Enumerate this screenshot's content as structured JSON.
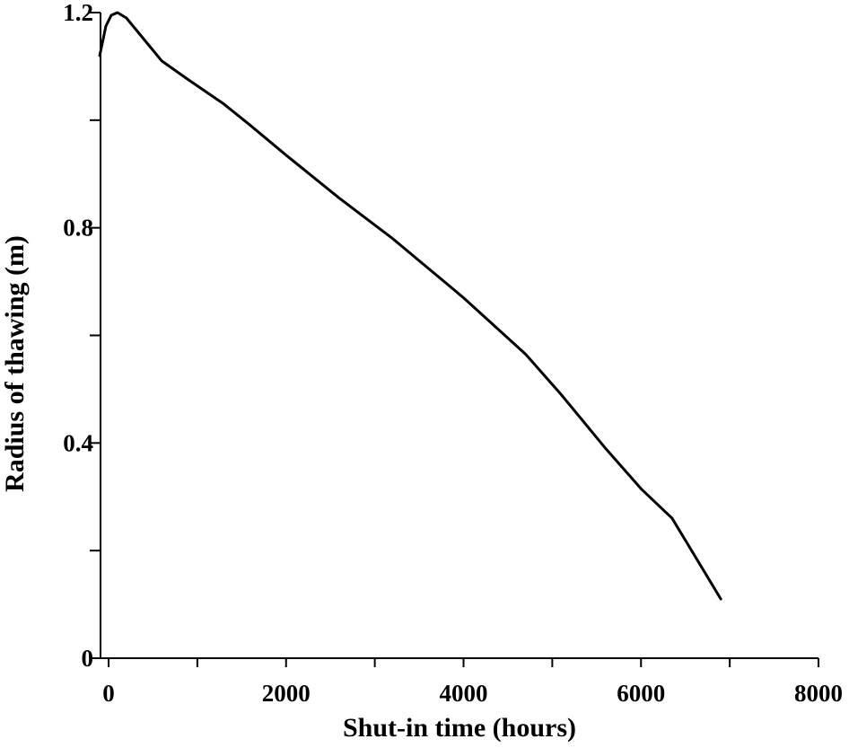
{
  "chart_data": {
    "type": "line",
    "title": "",
    "xlabel": "Shut-in time (hours)",
    "ylabel": "Radius of thawing (m)",
    "xlim": [
      -100,
      8000
    ],
    "ylim": [
      0,
      1.2
    ],
    "x_ticks": [
      0,
      1000,
      2000,
      3000,
      4000,
      5000,
      6000,
      7000,
      8000
    ],
    "x_tick_labels": [
      "0",
      "",
      "2000",
      "",
      "4000",
      "",
      "6000",
      "",
      "8000"
    ],
    "y_ticks": [
      0,
      0.2,
      0.4,
      0.6,
      0.8,
      1.0,
      1.2
    ],
    "y_tick_labels": [
      "0",
      "",
      "0.4",
      "",
      "0.8",
      "",
      "1.2"
    ],
    "grid": false,
    "series": [
      {
        "points": [
          [
            -100,
            1.12
          ],
          [
            -30,
            1.175
          ],
          [
            30,
            1.195
          ],
          [
            100,
            1.2
          ],
          [
            200,
            1.19
          ],
          [
            400,
            1.15
          ],
          [
            600,
            1.11
          ],
          [
            900,
            1.075
          ],
          [
            1300,
            1.03
          ],
          [
            1600,
            0.99
          ],
          [
            2000,
            0.935
          ],
          [
            2600,
            0.855
          ],
          [
            3200,
            0.78
          ],
          [
            4000,
            0.67
          ],
          [
            4700,
            0.565
          ],
          [
            5100,
            0.49
          ],
          [
            5600,
            0.39
          ],
          [
            6000,
            0.315
          ],
          [
            6350,
            0.26
          ],
          [
            6900,
            0.11
          ]
        ]
      }
    ]
  }
}
